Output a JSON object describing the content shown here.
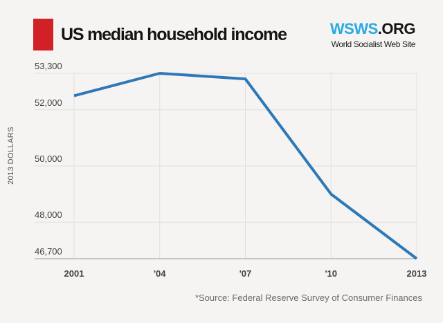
{
  "header": {
    "title": "US median household income",
    "logo": {
      "main": "WSWS",
      "suffix": ".ORG",
      "tagline": "World Socialist Web Site"
    }
  },
  "colors": {
    "background": "#f5f4f2",
    "accent_red": "#d22027",
    "logo_blue": "#2aa9e1",
    "logo_dark": "#151515",
    "line_blue": "#2e78b8",
    "gridline": "#e1dfdd",
    "axis": "#b8b5b2",
    "tick_text": "#454240"
  },
  "chart_data": {
    "type": "line",
    "title": "US median household income",
    "categories": [
      "2001",
      "'04",
      "'07",
      "'10",
      "2013"
    ],
    "values": [
      52500,
      53300,
      53100,
      49000,
      46700
    ],
    "series": [
      {
        "name": "US median household income (2013 dollars)",
        "values": [
          52500,
          53300,
          53100,
          49000,
          46700
        ]
      }
    ],
    "xlabel": "",
    "ylabel": "2013 DOLLARS",
    "ylim": [
      46700,
      53300
    ],
    "yticks": [
      {
        "value": 53300,
        "label": "53,300"
      },
      {
        "value": 52000,
        "label": "52,000"
      },
      {
        "value": 50000,
        "label": "50,000"
      },
      {
        "value": 48000,
        "label": "48,000"
      },
      {
        "value": 46700,
        "label": "46,700"
      }
    ],
    "grid": true,
    "legend": "none",
    "source_note": "*Source: Federal Reserve Survey of Consumer Finances"
  }
}
